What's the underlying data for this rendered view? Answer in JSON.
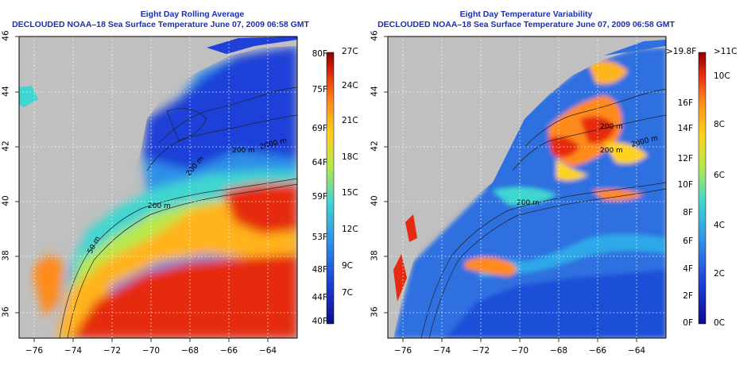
{
  "left_panel": {
    "title_line1": "Eight Day Rolling Average",
    "title_line2": "DECLOUDED NOAA–18 Sea Surface Temperature June 07, 2009 06:58 GMT",
    "lon_ticks": [
      "−76",
      "−74",
      "−72",
      "−70",
      "−68",
      "−66",
      "−64"
    ],
    "lat_ticks": [
      "36",
      "38",
      "40",
      "42",
      "44",
      "46"
    ],
    "contours": [
      "50 m",
      "200 m",
      "200 m",
      "200 m",
      "2000 m"
    ],
    "colorbar_F": [
      "80F",
      "75F",
      "69F",
      "64F",
      "59F",
      "53F",
      "48F",
      "44F",
      "40F"
    ],
    "colorbar_C": [
      "27C",
      "24C",
      "21C",
      "18C",
      "15C",
      "12C",
      "9C",
      "7C"
    ]
  },
  "right_panel": {
    "title_line1": "Eight Day Temperature Variability",
    "title_line2": "DECLOUDED NOAA–18 Sea Surface Temperature June 07, 2009 06:58 GMT",
    "lon_ticks": [
      "−76",
      "−74",
      "−72",
      "−70",
      "−68",
      "−66",
      "−64"
    ],
    "lat_ticks": [
      "36",
      "38",
      "40",
      "42",
      "44",
      "46"
    ],
    "contours": [
      "200 m",
      "200 m",
      "200 m",
      "2000 m"
    ],
    "colorbar_F": [
      ">19.8F",
      "16F",
      "14F",
      "12F",
      "10F",
      "8F",
      "6F",
      "4F",
      "2F",
      "0F"
    ],
    "colorbar_C": [
      ">11C",
      "10C",
      "8C",
      "6C",
      "4C",
      "2C",
      "0C"
    ]
  },
  "colors": {
    "title": "#1a2fb0",
    "land": "#c0c0c0",
    "sst_scale": [
      "#0d0d8c",
      "#1f3fd8",
      "#2f8fe8",
      "#3fd6d0",
      "#b8e84a",
      "#ffd21a",
      "#ff8a1a",
      "#e62a0f",
      "#8c0000"
    ],
    "var_scale": [
      "#0d0d8c",
      "#1f3fd8",
      "#2f8fe8",
      "#3fd6d0",
      "#b8e84a",
      "#ffd21a",
      "#ff8a1a",
      "#e62a0f",
      "#8c0000"
    ]
  }
}
